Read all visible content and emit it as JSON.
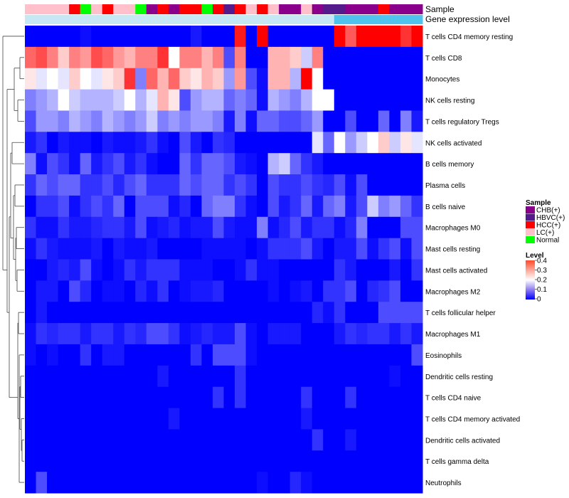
{
  "chart_data": {
    "type": "heatmap",
    "title": "",
    "annotation_tracks": [
      "Sample",
      "Gene expression level"
    ],
    "sample_annotation": [
      "LC(+)",
      "LC(+)",
      "LC(+)",
      "LC(+)",
      "HCC(+)",
      "Normal",
      "LC(+)",
      "HCC(+)",
      "LC(+)",
      "LC(+)",
      "Normal",
      "CHB(+)",
      "HCC(+)",
      "CHB(+)",
      "HCC(+)",
      "HCC(+)",
      "Normal",
      "HCC(+)",
      "HBVC(+)",
      "HCC(+)",
      "LC(+)",
      "HCC(+)",
      "LC(+)",
      "CHB(+)",
      "CHB(+)",
      "LC(+)",
      "CHB(+)",
      "HBVC(+)",
      "HBVC(+)",
      "CHB(+)",
      "CHB(+)",
      "CHB(+)",
      "HCC(+)",
      "CHB(+)",
      "CHB(+)",
      "CHB(+)"
    ],
    "expression_annotation": [
      "low",
      "low",
      "low",
      "low",
      "low",
      "low",
      "low",
      "low",
      "low",
      "low",
      "low",
      "low",
      "low",
      "low",
      "low",
      "low",
      "low",
      "low",
      "low",
      "low",
      "low",
      "low",
      "low",
      "low",
      "low",
      "low",
      "low",
      "low",
      "high",
      "high",
      "high",
      "high",
      "high",
      "high",
      "high",
      "high"
    ],
    "rows": [
      "T cells CD4 memory resting",
      "T cells CD8",
      "Monocytes",
      "NK cells resting",
      "T cells regulatory  Tregs",
      "NK cells activated",
      "B cells memory",
      "Plasma cells",
      "B cells naive",
      "Macrophages M0",
      "Mast cells resting",
      "Mast cells activated",
      "Macrophages M2",
      "T cells follicular helper",
      "Macrophages M1",
      "Eosinophils",
      "Dendritic cells resting",
      "T cells CD4 naive",
      "T cells CD4 memory activated",
      "Dendritic cells activated",
      "T cells gamma delta",
      "Neutrophils"
    ],
    "values": [
      [
        0,
        0,
        0,
        0,
        0,
        0.01,
        0,
        0,
        0,
        0,
        0,
        0,
        0,
        0,
        0,
        0.02,
        0,
        0,
        0,
        0.38,
        0,
        0.4,
        0,
        0,
        0,
        0,
        0,
        0,
        0.4,
        0.33,
        0.4,
        0.4,
        0.4,
        0.4,
        0.36,
        0.4
      ],
      [
        0.32,
        0.34,
        0.3,
        0.24,
        0.3,
        0.28,
        0.34,
        0.32,
        0.28,
        0.26,
        0.3,
        0.3,
        0.36,
        0.2,
        0.3,
        0.3,
        0.26,
        0.3,
        0.06,
        0.3,
        0,
        0,
        0.26,
        0.26,
        0.24,
        0.16,
        0.3,
        0,
        0,
        0,
        0,
        0,
        0,
        0,
        0,
        0
      ],
      [
        0.22,
        0.18,
        0.2,
        0.18,
        0.24,
        0.2,
        0.18,
        0.22,
        0.24,
        0.36,
        0.1,
        0.32,
        0.26,
        0.32,
        0.24,
        0.22,
        0.26,
        0.24,
        0.12,
        0.28,
        0.06,
        0.01,
        0.26,
        0.26,
        0.14,
        0.4,
        0.2,
        0,
        0,
        0,
        0,
        0,
        0,
        0,
        0,
        0
      ],
      [
        0.1,
        0.12,
        0.14,
        0.2,
        0.16,
        0.14,
        0.14,
        0.14,
        0.16,
        0.2,
        0.14,
        0.18,
        0.26,
        0.22,
        0.06,
        0.12,
        0.14,
        0.14,
        0.08,
        0.1,
        0.08,
        0.01,
        0.14,
        0.12,
        0.1,
        0.14,
        0.2,
        0.2,
        0,
        0,
        0,
        0,
        0,
        0,
        0,
        0
      ],
      [
        0.06,
        0.12,
        0.12,
        0.1,
        0.14,
        0.12,
        0.1,
        0.14,
        0.12,
        0.1,
        0.12,
        0.16,
        0.1,
        0.12,
        0.1,
        0.12,
        0.12,
        0.1,
        0.02,
        0.1,
        0.01,
        0.08,
        0.08,
        0.06,
        0.06,
        0.08,
        0.12,
        0,
        0,
        0.06,
        0,
        0,
        0.08,
        0,
        0.1,
        0.02
      ],
      [
        0.02,
        0.04,
        0,
        0.02,
        0.01,
        0.01,
        0,
        0.02,
        0.01,
        0.01,
        0.02,
        0.04,
        0.01,
        0,
        0.06,
        0.02,
        0,
        0.04,
        0.03,
        0,
        0,
        0,
        0,
        0,
        0,
        0,
        0.18,
        0.08,
        0.2,
        0.12,
        0.16,
        0.2,
        0.24,
        0.16,
        0.22,
        0.18
      ],
      [
        0.1,
        0.01,
        0.06,
        0.04,
        0.01,
        0.08,
        0.02,
        0.04,
        0.06,
        0.02,
        0.04,
        0.01,
        0,
        0,
        0.08,
        0.04,
        0.08,
        0.08,
        0.06,
        0.02,
        0.01,
        0,
        0.14,
        0.16,
        0.08,
        0.04,
        0.02,
        0,
        0,
        0,
        0,
        0,
        0,
        0,
        0,
        0
      ],
      [
        0.04,
        0.08,
        0.06,
        0.08,
        0.08,
        0.04,
        0.04,
        0.06,
        0.03,
        0.06,
        0.08,
        0.04,
        0.04,
        0.04,
        0.08,
        0.06,
        0.08,
        0.08,
        0.04,
        0.06,
        0.04,
        0,
        0.06,
        0.04,
        0.04,
        0.06,
        0.04,
        0.03,
        0.06,
        0.01,
        0.06,
        0,
        0,
        0,
        0,
        0
      ],
      [
        0,
        0.04,
        0.04,
        0.06,
        0.01,
        0.04,
        0.06,
        0.04,
        0.08,
        0,
        0.06,
        0.06,
        0.06,
        0.01,
        0.03,
        0,
        0.08,
        0.1,
        0.1,
        0.04,
        0.01,
        0,
        0.06,
        0.02,
        0.04,
        0.08,
        0.02,
        0.08,
        0.1,
        0.02,
        0.06,
        0.16,
        0.1,
        0.12,
        0.08,
        0.04
      ],
      [
        0.04,
        0.01,
        0.01,
        0.04,
        0.02,
        0.02,
        0.03,
        0.04,
        0.04,
        0.02,
        0.06,
        0.01,
        0.02,
        0.03,
        0.01,
        0.02,
        0.02,
        0.06,
        0.02,
        0.01,
        0.01,
        0.1,
        0.01,
        0.03,
        0.06,
        0.02,
        0.04,
        0.04,
        0.01,
        0.03,
        0.1,
        0,
        0,
        0,
        0.06,
        0.06
      ],
      [
        0.01,
        0.04,
        0.02,
        0.01,
        0.01,
        0.01,
        0.02,
        0,
        0.02,
        0.01,
        0.01,
        0.02,
        0,
        0,
        0,
        0,
        0.01,
        0.01,
        0.01,
        0.01,
        0,
        0.01,
        0.04,
        0.04,
        0.04,
        0.06,
        0.02,
        0,
        0.02,
        0.02,
        0.06,
        0.01,
        0.04,
        0.06,
        0.01,
        0.06
      ],
      [
        0,
        0,
        0.02,
        0.03,
        0.02,
        0.06,
        0.01,
        0,
        0.01,
        0.04,
        0.02,
        0.04,
        0.04,
        0.04,
        0.01,
        0.01,
        0.01,
        0,
        0,
        0.01,
        0.04,
        0.01,
        0.01,
        0,
        0,
        0,
        0,
        0,
        0.04,
        0.02,
        0,
        0,
        0,
        0.02,
        0,
        0.04
      ],
      [
        0,
        0.02,
        0.02,
        0,
        0.06,
        0.03,
        0,
        0.01,
        0.01,
        0,
        0.03,
        0.01,
        0.04,
        0,
        0.01,
        0.02,
        0.02,
        0.03,
        0,
        0,
        0,
        0,
        0.01,
        0,
        0.01,
        0.02,
        0,
        0.04,
        0.04,
        0.06,
        0,
        0.03,
        0.04,
        0.06,
        0,
        0
      ],
      [
        0,
        0.02,
        0,
        0,
        0,
        0,
        0,
        0,
        0,
        0,
        0,
        0,
        0,
        0,
        0,
        0,
        0,
        0,
        0,
        0,
        0,
        0,
        0,
        0,
        0,
        0,
        0.03,
        0.01,
        0.04,
        0,
        0,
        0,
        0.06,
        0.06,
        0.06,
        0.06
      ],
      [
        0.01,
        0.04,
        0.03,
        0.04,
        0.04,
        0.02,
        0.04,
        0.04,
        0.02,
        0.04,
        0.03,
        0.06,
        0.06,
        0.04,
        0.01,
        0.02,
        0.03,
        0.02,
        0.02,
        0.06,
        0.01,
        0,
        0.02,
        0.02,
        0.02,
        0,
        0,
        0,
        0.02,
        0.04,
        0.03,
        0.04,
        0.04,
        0.02,
        0.04,
        0.02
      ],
      [
        0.01,
        0,
        0.01,
        0,
        0,
        0.04,
        0,
        0.02,
        0.02,
        0,
        0,
        0,
        0,
        0,
        0,
        0.04,
        0,
        0.06,
        0.06,
        0.06,
        0.01,
        0,
        0,
        0,
        0,
        0,
        0,
        0,
        0,
        0,
        0,
        0,
        0,
        0,
        0,
        0.06
      ],
      [
        0,
        0,
        0,
        0,
        0,
        0,
        0,
        0,
        0,
        0,
        0,
        0,
        0.02,
        0,
        0,
        0,
        0,
        0,
        0,
        0.04,
        0,
        0,
        0,
        0,
        0,
        0,
        0,
        0,
        0,
        0,
        0,
        0,
        0,
        0.01,
        0,
        0
      ],
      [
        0,
        0,
        0,
        0,
        0,
        0,
        0,
        0,
        0,
        0,
        0,
        0,
        0,
        0,
        0,
        0,
        0,
        0.04,
        0,
        0.04,
        0,
        0,
        0,
        0,
        0,
        0.04,
        0,
        0,
        0,
        0.04,
        0,
        0,
        0,
        0,
        0,
        0
      ],
      [
        0,
        0,
        0,
        0,
        0,
        0,
        0,
        0,
        0,
        0,
        0,
        0,
        0,
        0.02,
        0,
        0,
        0,
        0,
        0,
        0,
        0,
        0,
        0,
        0,
        0,
        0.02,
        0,
        0,
        0,
        0,
        0,
        0,
        0,
        0,
        0,
        0
      ],
      [
        0,
        0,
        0,
        0,
        0,
        0,
        0,
        0,
        0,
        0,
        0,
        0,
        0,
        0,
        0,
        0,
        0,
        0,
        0,
        0,
        0,
        0,
        0,
        0,
        0,
        0,
        0.04,
        0,
        0,
        0.02,
        0,
        0,
        0,
        0,
        0,
        0
      ],
      [
        0,
        0,
        0,
        0,
        0,
        0,
        0,
        0,
        0,
        0,
        0,
        0,
        0,
        0,
        0,
        0,
        0,
        0,
        0,
        0,
        0,
        0,
        0,
        0,
        0,
        0,
        0,
        0,
        0,
        0,
        0,
        0,
        0,
        0,
        0,
        0
      ],
      [
        0,
        0.06,
        0,
        0,
        0,
        0,
        0,
        0,
        0,
        0,
        0,
        0,
        0,
        0,
        0,
        0,
        0,
        0,
        0,
        0,
        0,
        0.01,
        0,
        0,
        0.03,
        0.01,
        0,
        0,
        0,
        0,
        0,
        0,
        0,
        0,
        0,
        0
      ]
    ],
    "color_scale": {
      "min": 0,
      "max": 0.4,
      "colors": [
        "#0000ff",
        "#ffffff",
        "#ff0000"
      ]
    },
    "legend": {
      "sample": {
        "title": "Sample",
        "entries": [
          {
            "label": "CHB(+)",
            "color": "#8b008b"
          },
          {
            "label": "HBVC(+)",
            "color": "#551a8b"
          },
          {
            "label": "HCC(+)",
            "color": "#ff0000"
          },
          {
            "label": "LC(+)",
            "color": "#ffc0cb"
          },
          {
            "label": "Normal",
            "color": "#00ff00"
          }
        ]
      },
      "level": {
        "title": "Level",
        "ticks": [
          "0.4",
          "0.3",
          "0.2",
          "0.1",
          "0"
        ]
      }
    },
    "expression_colors": {
      "low": "#c6e8f5",
      "high": "#4fc3ee"
    }
  }
}
